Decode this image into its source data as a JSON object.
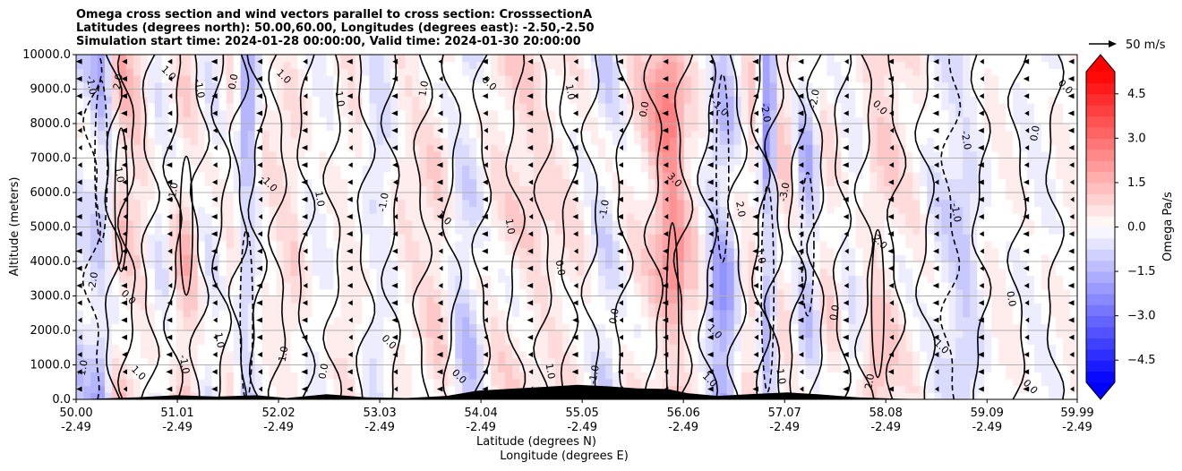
{
  "title_lines": [
    "Omega cross section and wind vectors parallel to cross section: CrosssectionA",
    "Latitudes (degrees north): 50.00,60.00, Longitudes (degrees east): -2.50,-2.50",
    "Simulation start time: 2024-01-28 00:00:00, Valid time: 2024-01-30 20:00:00"
  ],
  "chart_data": {
    "type": "heatmap",
    "title": "Omega cross section and wind vectors parallel to cross section: CrosssectionA",
    "ylabel": "Altitude (meters)",
    "xlabel_lines": [
      "Latitude (degrees N)",
      "Longitude (degrees E)"
    ],
    "ylim": [
      0,
      10000
    ],
    "xlim": [
      50.0,
      59.99
    ],
    "y_ticks": [
      0,
      1000,
      2000,
      3000,
      4000,
      5000,
      6000,
      7000,
      8000,
      9000,
      10000
    ],
    "y_tick_labels": [
      "0.0",
      "1000.0",
      "2000.0",
      "3000.0",
      "4000.0",
      "5000.0",
      "6000.0",
      "7000.0",
      "8000.0",
      "9000.0",
      "10000.0"
    ],
    "x_ticks": [
      50.0,
      51.01,
      52.02,
      53.03,
      54.04,
      55.05,
      56.06,
      57.07,
      58.08,
      59.09,
      59.99
    ],
    "x_tick_lat_labels": [
      "50.00",
      "51.01",
      "52.02",
      "53.03",
      "54.04",
      "55.05",
      "56.06",
      "57.07",
      "58.08",
      "59.09",
      "59.99"
    ],
    "x_tick_lon_labels": [
      "-2.49",
      "-2.49",
      "-2.49",
      "-2.49",
      "-2.49",
      "-2.49",
      "-2.49",
      "-2.49",
      "-2.49",
      "-2.49",
      "-2.49"
    ],
    "grid": "horizontal",
    "colorbar": {
      "label": "Omega Pa/s",
      "range": [
        -5.25,
        5.25
      ],
      "ticks": [
        -4.5,
        -3.0,
        -1.5,
        0.0,
        1.5,
        3.0,
        4.5
      ],
      "tick_labels": [
        "−4.5",
        "−3.0",
        "−1.5",
        "0.0",
        "1.5",
        "3.0",
        "4.5"
      ],
      "extend": "both",
      "cmap": "bwr",
      "low_color": "#0000ff",
      "high_color": "#ff0000"
    },
    "wind_reference": {
      "speed": 50,
      "label": "50 m/s"
    },
    "omega_columns": [
      {
        "lat": 50.1,
        "value": -1.0
      },
      {
        "lat": 50.25,
        "value": -2.0
      },
      {
        "lat": 50.45,
        "value": 1.6
      },
      {
        "lat": 50.6,
        "value": 1.2
      },
      {
        "lat": 50.85,
        "value": -0.5
      },
      {
        "lat": 51.1,
        "value": 1.5
      },
      {
        "lat": 51.35,
        "value": -0.6
      },
      {
        "lat": 51.55,
        "value": 0.7
      },
      {
        "lat": 51.7,
        "value": -2.2
      },
      {
        "lat": 51.9,
        "value": 0.5
      },
      {
        "lat": 52.15,
        "value": 0.9
      },
      {
        "lat": 52.4,
        "value": -0.3
      },
      {
        "lat": 52.75,
        "value": 0.8
      },
      {
        "lat": 53.0,
        "value": -1.0
      },
      {
        "lat": 53.3,
        "value": 0.6
      },
      {
        "lat": 53.6,
        "value": 1.0
      },
      {
        "lat": 53.9,
        "value": -1.4
      },
      {
        "lat": 54.2,
        "value": 0.9
      },
      {
        "lat": 54.55,
        "value": 1.1
      },
      {
        "lat": 54.8,
        "value": 0.7
      },
      {
        "lat": 55.0,
        "value": 0.5
      },
      {
        "lat": 55.3,
        "value": -1.1
      },
      {
        "lat": 55.6,
        "value": 0.9
      },
      {
        "lat": 55.95,
        "value": 3.2
      },
      {
        "lat": 56.15,
        "value": 1.0
      },
      {
        "lat": 56.45,
        "value": -2.6
      },
      {
        "lat": 56.75,
        "value": 1.3
      },
      {
        "lat": 56.9,
        "value": -3.0
      },
      {
        "lat": 57.05,
        "value": 1.2
      },
      {
        "lat": 57.3,
        "value": -1.6
      },
      {
        "lat": 57.5,
        "value": 0.8
      },
      {
        "lat": 57.75,
        "value": -0.5
      },
      {
        "lat": 58.0,
        "value": 1.7
      },
      {
        "lat": 58.35,
        "value": 0.5
      },
      {
        "lat": 58.6,
        "value": -0.6
      },
      {
        "lat": 58.85,
        "value": -1.3
      },
      {
        "lat": 59.2,
        "value": 0.4
      },
      {
        "lat": 59.6,
        "value": -0.3
      },
      {
        "lat": 59.9,
        "value": 0.3
      }
    ],
    "terrain": [
      {
        "lat": 50.0,
        "alt": 0
      },
      {
        "lat": 50.6,
        "alt": 60
      },
      {
        "lat": 51.0,
        "alt": 120
      },
      {
        "lat": 51.4,
        "alt": 80
      },
      {
        "lat": 51.8,
        "alt": 120
      },
      {
        "lat": 52.1,
        "alt": 40
      },
      {
        "lat": 52.5,
        "alt": 150
      },
      {
        "lat": 52.9,
        "alt": 60
      },
      {
        "lat": 53.3,
        "alt": 40
      },
      {
        "lat": 53.7,
        "alt": 100
      },
      {
        "lat": 54.0,
        "alt": 250
      },
      {
        "lat": 54.3,
        "alt": 300
      },
      {
        "lat": 54.6,
        "alt": 350
      },
      {
        "lat": 55.0,
        "alt": 420
      },
      {
        "lat": 55.3,
        "alt": 380
      },
      {
        "lat": 55.6,
        "alt": 320
      },
      {
        "lat": 55.9,
        "alt": 300
      },
      {
        "lat": 56.1,
        "alt": 180
      },
      {
        "lat": 56.4,
        "alt": 100
      },
      {
        "lat": 56.8,
        "alt": 160
      },
      {
        "lat": 57.1,
        "alt": 200
      },
      {
        "lat": 57.4,
        "alt": 150
      },
      {
        "lat": 57.8,
        "alt": 60
      },
      {
        "lat": 58.2,
        "alt": 20
      },
      {
        "lat": 58.6,
        "alt": 0
      },
      {
        "lat": 59.99,
        "alt": 0
      }
    ],
    "contour_labels": [
      {
        "lat": 50.12,
        "alt": 9100,
        "text": "-1.0"
      },
      {
        "lat": 50.45,
        "alt": 9200,
        "text": "2.0"
      },
      {
        "lat": 50.9,
        "alt": 9400,
        "text": "1.0"
      },
      {
        "lat": 51.2,
        "alt": 9000,
        "text": "-1.0"
      },
      {
        "lat": 51.6,
        "alt": 9200,
        "text": "0.0"
      },
      {
        "lat": 52.05,
        "alt": 9300,
        "text": "1.0"
      },
      {
        "lat": 52.6,
        "alt": 8700,
        "text": "1.0"
      },
      {
        "lat": 53.5,
        "alt": 9000,
        "text": "1.0"
      },
      {
        "lat": 54.1,
        "alt": 9100,
        "text": "0.0"
      },
      {
        "lat": 54.9,
        "alt": 8900,
        "text": "1.0"
      },
      {
        "lat": 55.7,
        "alt": 8400,
        "text": "0.0"
      },
      {
        "lat": 56.4,
        "alt": 8400,
        "text": "-1.0"
      },
      {
        "lat": 56.85,
        "alt": 8300,
        "text": "-2.0"
      },
      {
        "lat": 57.4,
        "alt": 8700,
        "text": "-2.0"
      },
      {
        "lat": 58.0,
        "alt": 8400,
        "text": "0.0"
      },
      {
        "lat": 58.85,
        "alt": 7500,
        "text": "-2.0"
      },
      {
        "lat": 59.6,
        "alt": 7700,
        "text": "0.0"
      },
      {
        "lat": 59.85,
        "alt": 9000,
        "text": "0.0"
      },
      {
        "lat": 50.4,
        "alt": 6500,
        "text": "1.0"
      },
      {
        "lat": 51.0,
        "alt": 6000,
        "text": "-1.0"
      },
      {
        "lat": 51.9,
        "alt": 6200,
        "text": "-1.0"
      },
      {
        "lat": 52.4,
        "alt": 5800,
        "text": "1.0"
      },
      {
        "lat": 53.1,
        "alt": 5700,
        "text": "-1.0"
      },
      {
        "lat": 53.65,
        "alt": 5200,
        "text": "1.0"
      },
      {
        "lat": 54.3,
        "alt": 5000,
        "text": "1.0"
      },
      {
        "lat": 55.3,
        "alt": 5500,
        "text": "-1.0"
      },
      {
        "lat": 55.95,
        "alt": 6300,
        "text": "3.0"
      },
      {
        "lat": 56.6,
        "alt": 5500,
        "text": "2.0"
      },
      {
        "lat": 57.1,
        "alt": 6000,
        "text": "-3.0"
      },
      {
        "lat": 58.0,
        "alt": 4500,
        "text": "2.0"
      },
      {
        "lat": 58.75,
        "alt": 5400,
        "text": "-1.0"
      },
      {
        "lat": 50.2,
        "alt": 3400,
        "text": "-2.0"
      },
      {
        "lat": 50.5,
        "alt": 2900,
        "text": "0.0"
      },
      {
        "lat": 51.4,
        "alt": 1700,
        "text": "1.0"
      },
      {
        "lat": 52.1,
        "alt": 1300,
        "text": "1.0"
      },
      {
        "lat": 53.1,
        "alt": 1600,
        "text": "0.0"
      },
      {
        "lat": 54.8,
        "alt": 3800,
        "text": "0.0"
      },
      {
        "lat": 55.4,
        "alt": 2400,
        "text": "0.0"
      },
      {
        "lat": 56.35,
        "alt": 1900,
        "text": "1.0"
      },
      {
        "lat": 56.8,
        "alt": 4200,
        "text": "-1.0"
      },
      {
        "lat": 57.6,
        "alt": 2500,
        "text": "0.0"
      },
      {
        "lat": 58.6,
        "alt": 1500,
        "text": "-1.0"
      },
      {
        "lat": 59.3,
        "alt": 2900,
        "text": "0.0"
      },
      {
        "lat": 50.1,
        "alt": 900,
        "text": "1.0"
      },
      {
        "lat": 50.6,
        "alt": 700,
        "text": "1.0"
      },
      {
        "lat": 51.05,
        "alt": 1000,
        "text": "-1.0"
      },
      {
        "lat": 52.5,
        "alt": 800,
        "text": "0.0"
      },
      {
        "lat": 53.8,
        "alt": 600,
        "text": "0.0"
      },
      {
        "lat": 54.7,
        "alt": 800,
        "text": "1.0"
      },
      {
        "lat": 55.2,
        "alt": 700,
        "text": "-1.0"
      },
      {
        "lat": 56.3,
        "alt": 500,
        "text": "1.0"
      },
      {
        "lat": 57.0,
        "alt": 700,
        "text": "-1.0"
      },
      {
        "lat": 57.95,
        "alt": 500,
        "text": "2.0"
      },
      {
        "lat": 59.5,
        "alt": 300,
        "text": "0.0"
      }
    ]
  }
}
